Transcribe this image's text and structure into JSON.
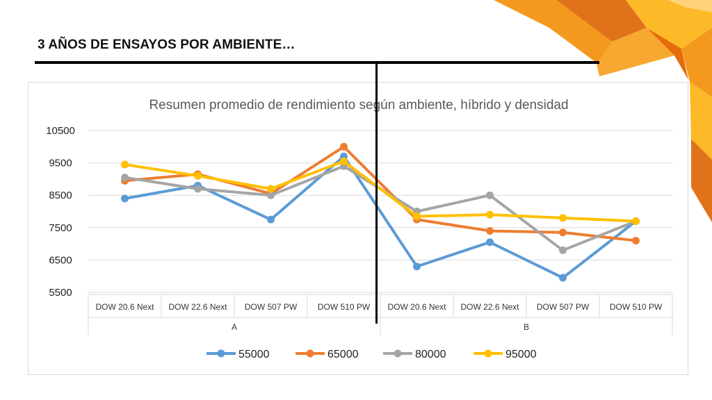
{
  "slide": {
    "title": "3 AÑOS DE ENSAYOS POR AMBIENTE…"
  },
  "colors": {
    "accent_orange": "#F39A1E",
    "accent_dark_orange": "#E0731A",
    "accent_yellow": "#FDB927"
  },
  "chart_data": {
    "type": "line",
    "title": "Resumen promedio de rendimiento según ambiente, híbrido y densidad",
    "categories": [
      "DOW 20.6 Next",
      "DOW 22.6 Next",
      "DOW 507 PW",
      "DOW 510 PW",
      "DOW 20.6 Next",
      "DOW 22.6 Next",
      "DOW 507 PW",
      "DOW 510 PW"
    ],
    "groups": [
      {
        "label": "A",
        "span": [
          0,
          3
        ]
      },
      {
        "label": "B",
        "span": [
          4,
          7
        ]
      }
    ],
    "ylim": [
      5500,
      10500
    ],
    "yticks": [
      "10500",
      "9500",
      "8500",
      "7500",
      "6500",
      "5500"
    ],
    "grid": true,
    "legend_position": "bottom",
    "series": [
      {
        "name": "55000",
        "color": "#5B9BD5",
        "values": [
          8400,
          8800,
          7750,
          9700,
          6300,
          7050,
          5950,
          7700
        ]
      },
      {
        "name": "65000",
        "color": "#ED7D31",
        "values": [
          8950,
          9150,
          8550,
          10000,
          7750,
          7400,
          7350,
          7100
        ]
      },
      {
        "name": "80000",
        "color": "#A5A5A5",
        "values": [
          9050,
          8700,
          8500,
          9400,
          8000,
          8500,
          6800,
          7700
        ]
      },
      {
        "name": "95000",
        "color": "#FFC000",
        "values": [
          9450,
          9100,
          8700,
          9550,
          7850,
          7900,
          7800,
          7700
        ]
      }
    ]
  }
}
